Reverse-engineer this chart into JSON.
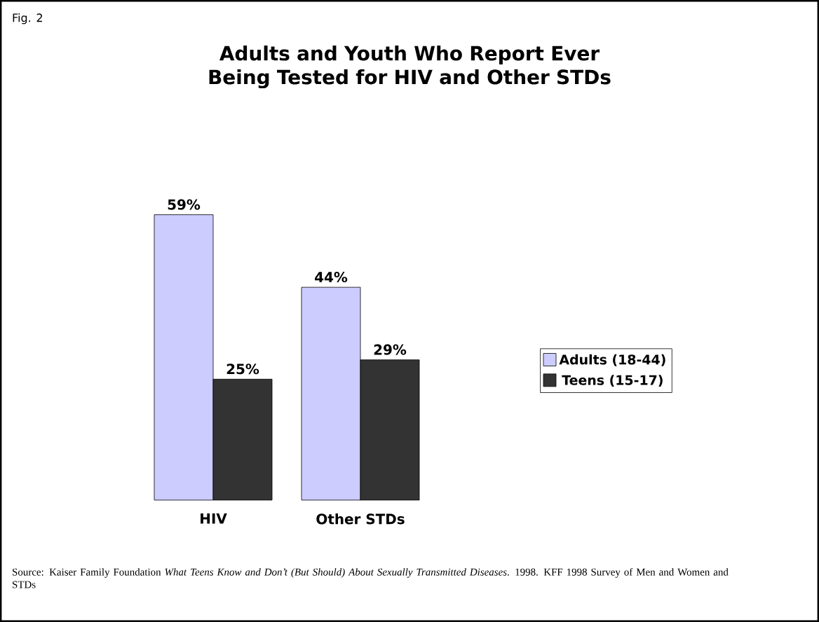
{
  "chart_data": {
    "type": "bar",
    "title": "Adults and Youth Who Report Ever Being Tested for HIV and Other STDs",
    "subtitle": "Fig. 2",
    "categories": [
      "HIV",
      "Other STDs"
    ],
    "series": [
      {
        "name": "Adults (18-44)",
        "color": "#ccccff",
        "values": [
          59,
          44
        ],
        "value_labels": [
          "59%",
          "44%"
        ]
      },
      {
        "name": "Teens (15-17)",
        "color": "#333333",
        "values": [
          25,
          29
        ],
        "value_labels": [
          "25%",
          "29%"
        ]
      }
    ],
    "legend": "right",
    "annotations": [
      "Source: Kaiser Family Foundation *What Teens Know and Don’t (But Should) About Sexually Transmitted Diseases*. 1998. KFF 1998 Survey of Men and Women and STDs"
    ]
  }
}
